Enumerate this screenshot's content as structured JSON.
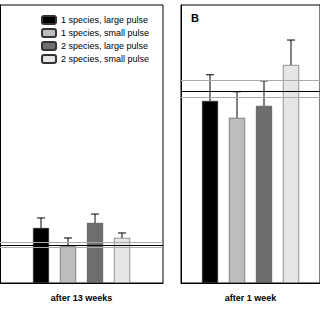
{
  "chart_data": [
    {
      "type": "bar",
      "categories": [
        "after 13 weeks"
      ],
      "series": [
        {
          "name": "1 species, large pulse",
          "color": "#000000",
          "values": [
            19.8
          ],
          "errors": [
            3.6
          ]
        },
        {
          "name": "1 species, small pulse",
          "color": "#bdbdbd",
          "values": [
            13.3
          ],
          "errors": [
            2.9
          ]
        },
        {
          "name": "2 species, large pulse",
          "color": "#6e6e6e",
          "values": [
            21.6
          ],
          "errors": [
            3.2
          ]
        },
        {
          "name": "2 species, small pulse",
          "color": "#e6e6e6",
          "values": [
            16.2
          ],
          "errors": [
            1.8
          ]
        }
      ],
      "hlines": [
        {
          "value": 14.7,
          "color": "#aaaaaa"
        },
        {
          "value": 13.7,
          "color": "#000000"
        },
        {
          "value": 12.9,
          "color": "#aaaaaa"
        }
      ],
      "ylim": [
        0,
        100
      ],
      "tick_labels": "x",
      "legend": "upper left"
    },
    {
      "type": "bar",
      "panel_label": "B",
      "categories": [
        "after 1 week"
      ],
      "series": [
        {
          "name": "1 species, large pulse",
          "color": "#000000",
          "values": [
            65.5
          ],
          "errors": [
            9.4
          ]
        },
        {
          "name": "1 species, small pulse",
          "color": "#bdbdbd",
          "values": [
            59.4
          ],
          "errors": [
            9.4
          ]
        },
        {
          "name": "2 species, large pulse",
          "color": "#6e6e6e",
          "values": [
            63.7
          ],
          "errors": [
            9.0
          ]
        },
        {
          "name": "2 species, small pulse",
          "color": "#e6e6e6",
          "values": [
            78.4
          ],
          "errors": [
            9.0
          ]
        }
      ],
      "hlines": [
        {
          "value": 73.0,
          "color": "#aaaaaa"
        },
        {
          "value": 69.1,
          "color": "#000000"
        },
        {
          "value": 66.9,
          "color": "#aaaaaa"
        }
      ],
      "ylim": [
        0,
        100
      ],
      "tick_labels": "x"
    }
  ]
}
